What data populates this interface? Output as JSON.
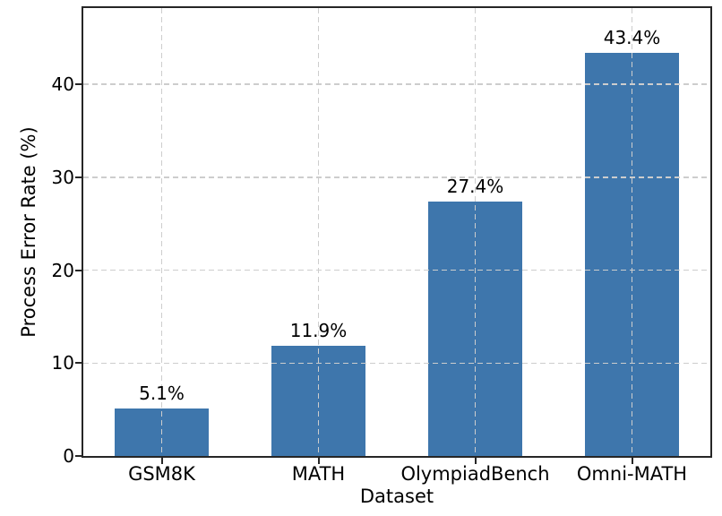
{
  "figure": {
    "background": "#ffffff"
  },
  "chart_data": {
    "type": "bar",
    "title": "",
    "xlabel": "Dataset",
    "ylabel": "Process Error Rate (%)",
    "categories": [
      "GSM8K",
      "MATH",
      "OlympiadBench",
      "Omni-MATH"
    ],
    "values": [
      5.1,
      11.9,
      27.4,
      43.4
    ],
    "value_labels": [
      "5.1%",
      "11.9%",
      "27.4%",
      "43.4%"
    ],
    "yticks": [
      0,
      10,
      20,
      30,
      40
    ],
    "ylim": [
      0,
      48.2
    ],
    "grid": "dashed",
    "grid_above_bars": true,
    "legend_position": "none",
    "bar_color": "#3e76ac",
    "grid_color": "#cdcdcd",
    "axis_color": "#262626",
    "text_color": "#000000",
    "bar_width_fraction": 0.6
  }
}
